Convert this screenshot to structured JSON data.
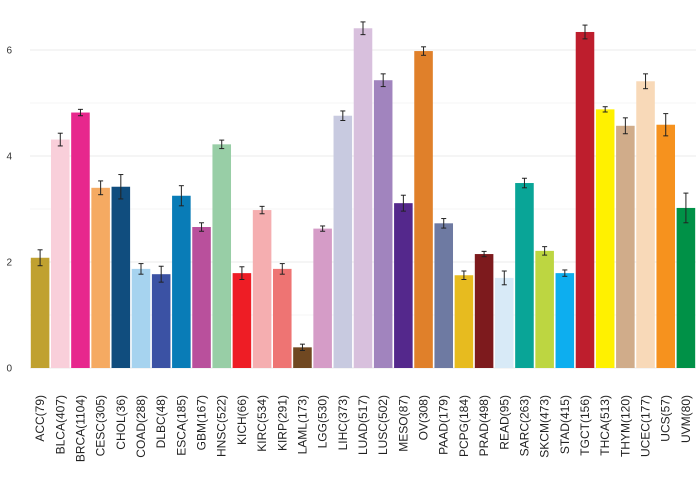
{
  "chart_data": {
    "type": "bar",
    "title": "",
    "xlabel": "",
    "ylabel": "",
    "ylim": [
      0,
      6.8
    ],
    "yticks": [
      0,
      2,
      4,
      6
    ],
    "grid": true,
    "legend": "none",
    "error_bars": true,
    "categories": [
      "ACC(79)",
      "BLCA(407)",
      "BRCA(1104)",
      "CESC(305)",
      "CHOL(36)",
      "COAD(288)",
      "DLBC(48)",
      "ESCA(185)",
      "GBM(167)",
      "HNSC(522)",
      "KICH(66)",
      "KIRC(534)",
      "KIRP(291)",
      "LAML(173)",
      "LGG(530)",
      "LIHC(373)",
      "LUAD(517)",
      "LUSC(502)",
      "MESO(87)",
      "OV(308)",
      "PAAD(179)",
      "PCPG(184)",
      "PRAD(498)",
      "READ(95)",
      "SARC(263)",
      "SKCM(473)",
      "STAD(415)",
      "TGCT(156)",
      "THCA(513)",
      "THYM(120)",
      "UCEC(177)",
      "UCS(57)",
      "UVM(80)"
    ],
    "values": [
      2.08,
      4.31,
      4.82,
      3.4,
      3.42,
      1.87,
      1.77,
      3.25,
      2.66,
      4.22,
      1.79,
      2.98,
      1.87,
      0.39,
      2.63,
      4.76,
      6.41,
      5.43,
      3.11,
      5.98,
      2.73,
      1.75,
      2.15,
      1.7,
      3.49,
      2.21,
      1.79,
      6.34,
      4.88,
      4.57,
      5.41,
      4.59,
      3.02
    ],
    "errors": [
      0.15,
      0.12,
      0.06,
      0.13,
      0.23,
      0.1,
      0.15,
      0.19,
      0.08,
      0.08,
      0.12,
      0.07,
      0.1,
      0.06,
      0.05,
      0.09,
      0.12,
      0.12,
      0.15,
      0.08,
      0.09,
      0.08,
      0.05,
      0.13,
      0.09,
      0.08,
      0.06,
      0.13,
      0.05,
      0.15,
      0.14,
      0.21,
      0.28
    ],
    "colors": [
      "#C0A130",
      "#F9CFDA",
      "#E7278D",
      "#F5AA62",
      "#104D7E",
      "#A6D3EF",
      "#3B52A4",
      "#097CB7",
      "#B9509C",
      "#98CEA6",
      "#EE1D25",
      "#F5AEB0",
      "#EE7473",
      "#704821",
      "#D59CC7",
      "#C8CAE0",
      "#D8C0DD",
      "#A184BE",
      "#54288C",
      "#E0802A",
      "#6E7AA2",
      "#E7BB1F",
      "#7D1A1D",
      "#D8EAF7",
      "#09A597",
      "#BDD641",
      "#0DAEEF",
      "#BE1E2D",
      "#FFF100",
      "#D0AC8A",
      "#F8D9B8",
      "#F6921E",
      "#009147"
    ]
  }
}
